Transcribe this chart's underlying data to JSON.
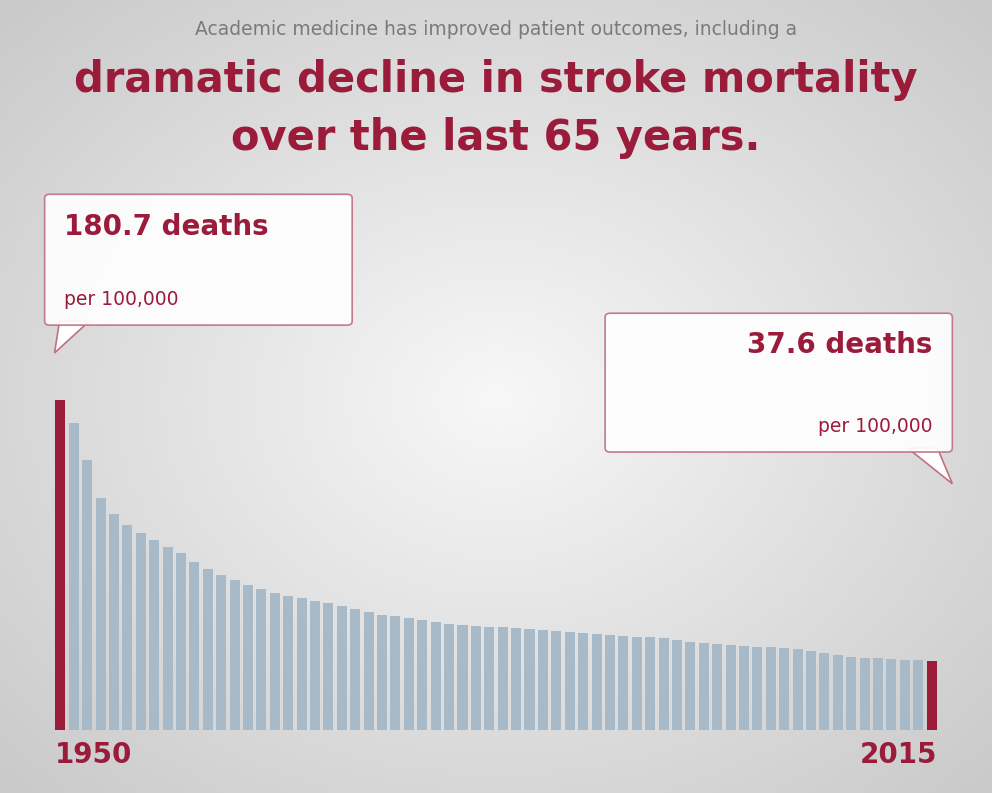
{
  "title_line1": "Academic medicine has improved patient outcomes, including a",
  "title_line2": "dramatic decline in stroke mortality",
  "title_line3": "over the last 65 years.",
  "subtitle_color": "#7a7a7a",
  "title_color": "#9b1b3b",
  "background_color": "#d0d0d0",
  "bar_color": "#a8bac8",
  "highlight_color": "#9b1b3b",
  "values": [
    180.7,
    168.0,
    148.0,
    127.0,
    118.0,
    112.0,
    108.0,
    104.0,
    100.0,
    97.0,
    92.0,
    88.0,
    85.0,
    82.0,
    79.0,
    77.0,
    75.0,
    73.0,
    72.0,
    70.5,
    69.5,
    68.0,
    66.0,
    64.5,
    63.0,
    62.0,
    61.0,
    60.0,
    59.0,
    58.0,
    57.5,
    57.0,
    56.5,
    56.0,
    55.5,
    55.0,
    54.5,
    54.0,
    53.5,
    53.0,
    52.5,
    52.0,
    51.5,
    51.0,
    50.5,
    50.0,
    49.0,
    48.0,
    47.5,
    47.0,
    46.5,
    46.0,
    45.5,
    45.0,
    44.5,
    44.0,
    43.0,
    42.0,
    41.0,
    40.0,
    39.5,
    39.0,
    38.5,
    38.2,
    37.9,
    37.6
  ],
  "annotation_left_big": "180.7 deaths",
  "annotation_left_small": "per 100,000",
  "annotation_right_big": "37.6 deaths",
  "annotation_right_small": "per 100,000",
  "year_start": "1950",
  "year_end": "2015",
  "n_bars": 66
}
